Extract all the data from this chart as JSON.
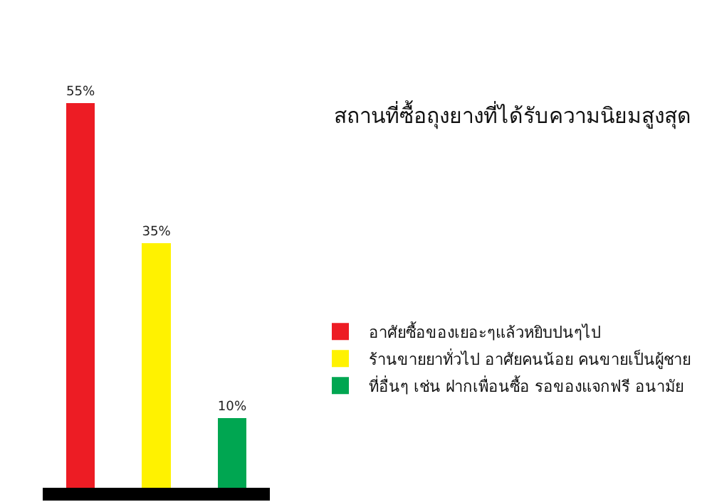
{
  "chart_data": {
    "type": "bar",
    "title": "สถานที่ซื้อถุงยางที่ได้รับความนิยมสูงสุด",
    "categories": [
      null,
      null,
      null
    ],
    "series": [
      {
        "name": "อาศัยซื้อของเยอะๆแล้วหยิบปนๆไป",
        "color": "#ed1c24",
        "values": [
          55,
          null,
          null
        ],
        "value_labels": [
          "55%",
          null,
          null
        ]
      },
      {
        "name": "ร้านขายยาทั่วไป อาศัยคนน้อย คนขายเป็นผู้ชาย",
        "color": "#fff200",
        "values": [
          null,
          35,
          null
        ],
        "value_labels": [
          null,
          "35%",
          null
        ]
      },
      {
        "name": "ที่อื่นๆ เช่น ฝากเพื่อนซื้อ รอของแจกฟรี อนามัย",
        "color": "#00a651",
        "values": [
          null,
          null,
          10
        ],
        "value_labels": [
          null,
          null,
          "10%"
        ]
      }
    ],
    "stacked": true,
    "tick_labels": false,
    "legend": "right"
  }
}
